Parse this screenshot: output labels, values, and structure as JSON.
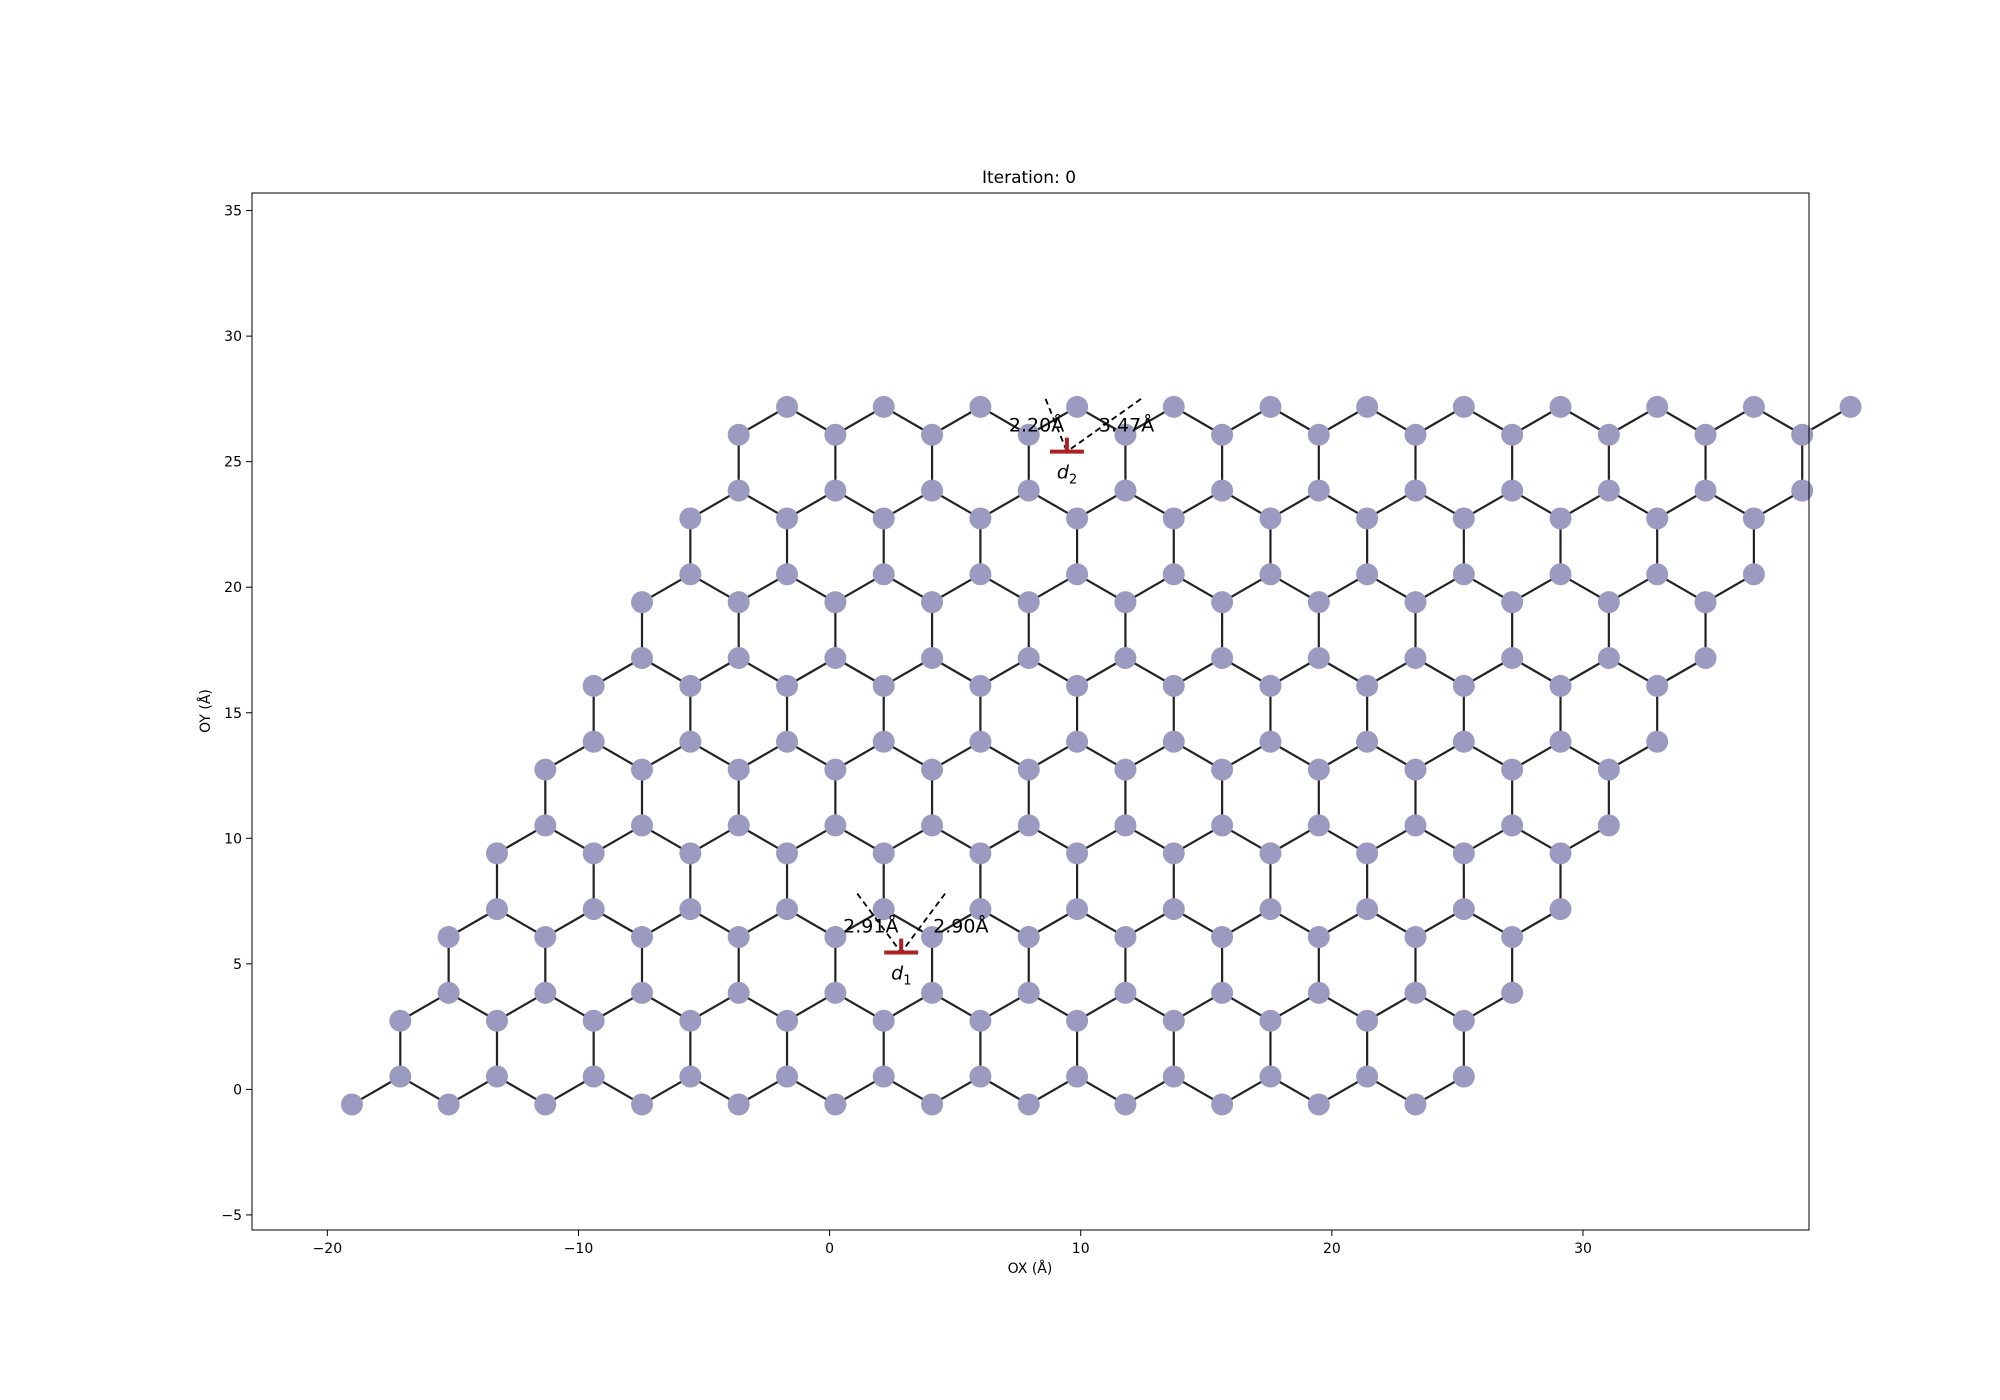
{
  "chart_data": {
    "type": "scatter",
    "title": "Iteration: 0",
    "xlabel": "OX (Å)",
    "ylabel": "OY (Å)",
    "xlim": [
      -23,
      39
    ],
    "ylim": [
      -5.6,
      35.7
    ],
    "xticks": [
      -20,
      -10,
      0,
      10,
      20,
      30
    ],
    "yticks": [
      -5,
      0,
      5,
      10,
      15,
      20,
      25,
      30,
      35
    ],
    "xtick_labels": [
      "−20",
      "−10",
      "0",
      "10",
      "20",
      "30"
    ],
    "ytick_labels": [
      "−5",
      "0",
      "5",
      "10",
      "15",
      "20",
      "25",
      "30",
      "35"
    ],
    "grid": false,
    "atom_color": "#9b9bc2",
    "bond_color": "#222222",
    "defect_color": "#aa2222",
    "lattice": {
      "a1": [
        3.85,
        0.0
      ],
      "a2": [
        1.925,
        3.334
      ],
      "sub_a": [
        0.0,
        0.0
      ],
      "sub_b": [
        1.925,
        1.111
      ],
      "origin": [
        -19.02,
        -0.6
      ],
      "n1": 12,
      "n2": 9
    },
    "defects": [
      {
        "label": "d",
        "subscript": "1",
        "position": [
          2.85,
          5.45
        ],
        "distances": [
          "2.91Å",
          "2.90Å"
        ],
        "neighbors": [
          [
            1.1,
            7.8
          ],
          [
            4.6,
            7.8
          ]
        ]
      },
      {
        "label": "d",
        "subscript": "2",
        "position": [
          9.45,
          25.4
        ],
        "distances": [
          "2.20Å",
          "3.47Å"
        ],
        "neighbors": [
          [
            8.6,
            27.5
          ],
          [
            12.4,
            27.5
          ]
        ]
      }
    ]
  }
}
